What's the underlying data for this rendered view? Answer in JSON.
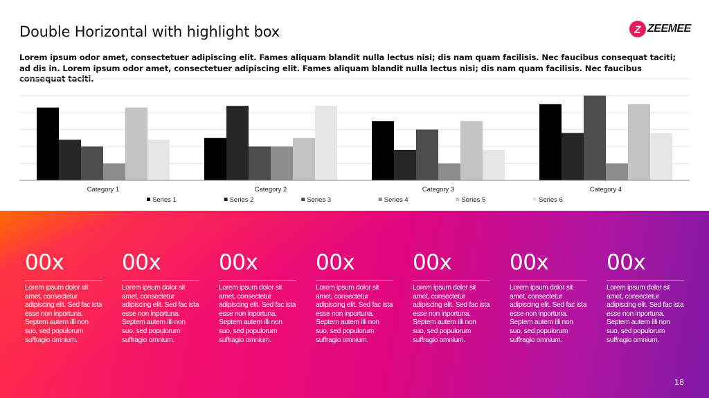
{
  "slide": {
    "title": "Double Horizontal with highlight box",
    "subtitle": "Lorem ipsum odor amet, consectetuer adipiscing elit. Fames aliquam blandit nulla lectus nisi; dis nam quam facilisis. Nec faucibus consequat taciti; ad dis in. Lorem ipsum odor amet, consectetuer adipiscing elit. Fames aliquam blandit nulla lectus nisi; dis nam quam facilisis. Nec faucibus consequat taciti.",
    "page_number": "18"
  },
  "logo": {
    "text": "ZEEMEE",
    "icon": "zeemee-logo-icon",
    "mark_letter": "Z",
    "accent": "#e8185a"
  },
  "chart_data": {
    "type": "bar",
    "title": "",
    "xlabel": "",
    "ylabel": "",
    "ylim": [
      0,
      6
    ],
    "grid": true,
    "legend": "bottom",
    "categories": [
      "Category 1",
      "Category 2",
      "Category 3",
      "Category 4"
    ],
    "series": [
      {
        "name": "Series 1",
        "color": "#000000",
        "values": [
          4.3,
          2.5,
          3.5,
          4.5
        ]
      },
      {
        "name": "Series 2",
        "color": "#262626",
        "values": [
          2.4,
          4.4,
          1.8,
          2.8
        ]
      },
      {
        "name": "Series 3",
        "color": "#4d4d4d",
        "values": [
          2.0,
          2.0,
          3.0,
          5.0
        ]
      },
      {
        "name": "Series 4",
        "color": "#8c8c8c",
        "values": [
          1.0,
          2.0,
          1.0,
          1.0
        ]
      },
      {
        "name": "Series 5",
        "color": "#c3c3c3",
        "values": [
          4.3,
          2.5,
          3.5,
          4.5
        ]
      },
      {
        "name": "Series 6",
        "color": "#e6e6e6",
        "values": [
          2.4,
          4.4,
          1.8,
          2.8
        ]
      }
    ]
  },
  "stats": [
    {
      "value": "00x",
      "text": "Lorem ipsum dolor sit amet, consectetur adipiscing elit. Sed fac ista esse non inportuna. Septem autem illi non suo, sed populorum suffragio omnium."
    },
    {
      "value": "00x",
      "text": "Lorem ipsum dolor sit amet, consectetur adipiscing elit. Sed fac ista esse non inportuna. Septem autem illi non suo, sed populorum suffragio omnium."
    },
    {
      "value": "00x",
      "text": "Lorem ipsum dolor sit amet, consectetur adipiscing elit. Sed fac ista esse non inportuna. Septem autem illi non suo, sed populorum suffragio omnium."
    },
    {
      "value": "00x",
      "text": "Lorem ipsum dolor sit amet, consectetur adipiscing elit. Sed fac ista esse non inportuna. Septem autem illi non suo, sed populorum suffragio omnium."
    },
    {
      "value": "00x",
      "text": "Lorem ipsum dolor sit amet, consectetur adipiscing elit. Sed fac ista esse non inportuna. Septem autem illi non suo, sed populorum suffragio omnium."
    },
    {
      "value": "00x",
      "text": "Lorem ipsum dolor sit amet, consectetur adipiscing elit. Sed fac ista esse non inportuna. Septem autem illi non suo, sed populorum suffragio omnium."
    },
    {
      "value": "00x",
      "text": "Lorem ipsum dolor sit amet, consectetur adipiscing elit. Sed fac ista esse non inportuna. Septem autem illi non suo, sed populorum suffragio omnium."
    }
  ]
}
